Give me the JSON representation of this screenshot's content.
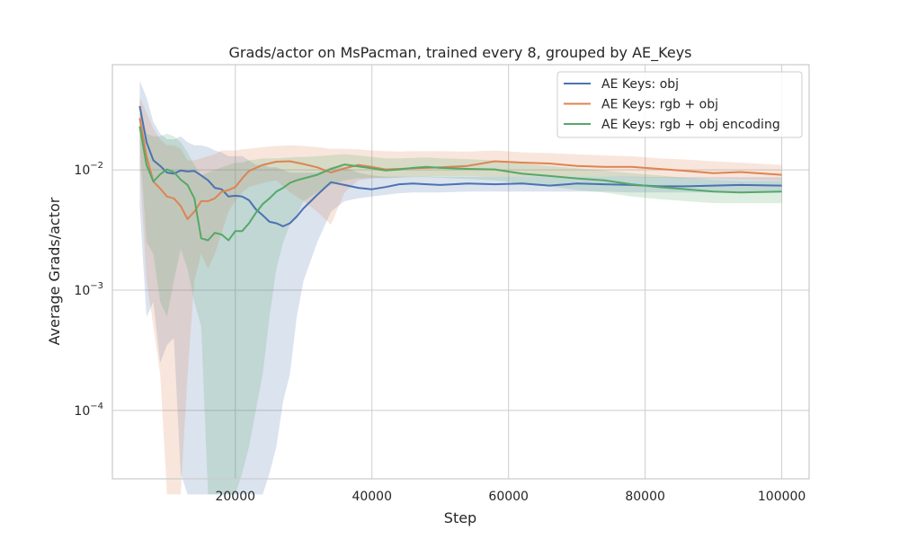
{
  "chart_data": {
    "type": "line",
    "title": "Grads/actor on MsPacman, trained every 8, grouped by AE_Keys",
    "xlabel": "Step",
    "ylabel": "Average Grads/actor",
    "xlim": [
      2000,
      104000
    ],
    "ylim": [
      2.7e-05,
      0.075
    ],
    "yscale": "log",
    "grid": true,
    "legend_position": "top-right",
    "x_ticks": [
      20000,
      40000,
      60000,
      80000,
      100000
    ],
    "x_tick_labels": [
      "20000",
      "40000",
      "60000",
      "80000",
      "100000"
    ],
    "y_ticks": [
      0.0001,
      0.001,
      0.01
    ],
    "y_tick_labels": [
      {
        "base": "10",
        "exp": "−4"
      },
      {
        "base": "10",
        "exp": "−3"
      },
      {
        "base": "10",
        "exp": "−2"
      }
    ],
    "series": [
      {
        "name": "AE Keys: obj",
        "color": "#4c72b0",
        "x": [
          6000,
          7000,
          8000,
          9000,
          10000,
          11000,
          12000,
          13000,
          14000,
          15000,
          16000,
          17000,
          18000,
          19000,
          20000,
          21000,
          22000,
          23000,
          24000,
          25000,
          26000,
          27000,
          28000,
          29000,
          30000,
          32000,
          34000,
          36000,
          38000,
          40000,
          42000,
          44000,
          46000,
          48000,
          50000,
          54000,
          58000,
          62000,
          66000,
          70000,
          74000,
          78000,
          82000,
          86000,
          90000,
          94000,
          100000
        ],
        "y": [
          0.034,
          0.017,
          0.012,
          0.0108,
          0.0095,
          0.0093,
          0.0099,
          0.0097,
          0.0098,
          0.009,
          0.0082,
          0.0071,
          0.0069,
          0.006,
          0.0061,
          0.006,
          0.0056,
          0.0047,
          0.0042,
          0.0037,
          0.0036,
          0.0034,
          0.0036,
          0.0041,
          0.0048,
          0.0062,
          0.0079,
          0.0075,
          0.0071,
          0.0069,
          0.0072,
          0.0076,
          0.0077,
          0.0076,
          0.0075,
          0.0077,
          0.0076,
          0.0077,
          0.0074,
          0.0077,
          0.0076,
          0.0075,
          0.0073,
          0.0073,
          0.0074,
          0.0075,
          0.0074
        ],
        "lower": [
          0.005,
          0.0006,
          0.0008,
          0.00025,
          0.00035,
          0.0004,
          3e-05,
          2e-05,
          2e-05,
          2e-05,
          2e-05,
          2e-05,
          2e-05,
          2e-05,
          2e-05,
          2e-05,
          2e-05,
          2e-05,
          2e-05,
          3e-05,
          5e-05,
          0.00012,
          0.0002,
          0.0006,
          0.0012,
          0.0025,
          0.0045,
          0.0055,
          0.0058,
          0.006,
          0.0062,
          0.0064,
          0.0065,
          0.0065,
          0.0065,
          0.0066,
          0.0066,
          0.0066,
          0.0066,
          0.0066,
          0.0066,
          0.0065,
          0.0065,
          0.0065,
          0.0065,
          0.0065,
          0.0065
        ],
        "upper": [
          0.055,
          0.04,
          0.025,
          0.02,
          0.018,
          0.018,
          0.019,
          0.017,
          0.016,
          0.016,
          0.0155,
          0.0145,
          0.014,
          0.013,
          0.013,
          0.013,
          0.012,
          0.011,
          0.011,
          0.0105,
          0.0105,
          0.01,
          0.0095,
          0.0095,
          0.0095,
          0.0095,
          0.0105,
          0.0105,
          0.0095,
          0.009,
          0.0088,
          0.0088,
          0.0088,
          0.0088,
          0.0088,
          0.0088,
          0.0088,
          0.0088,
          0.0088,
          0.0088,
          0.0088,
          0.0088,
          0.0087,
          0.0087,
          0.0087,
          0.0087,
          0.0087
        ]
      },
      {
        "name": "AE Keys: rgb + obj",
        "color": "#dd8452",
        "x": [
          6000,
          7000,
          8000,
          9000,
          10000,
          11000,
          12000,
          13000,
          14000,
          15000,
          16000,
          17000,
          18000,
          19000,
          20000,
          21000,
          22000,
          23000,
          24000,
          26000,
          28000,
          30000,
          32000,
          34000,
          36000,
          38000,
          40000,
          42000,
          44000,
          46000,
          48000,
          50000,
          54000,
          58000,
          62000,
          66000,
          70000,
          74000,
          78000,
          82000,
          86000,
          90000,
          94000,
          100000
        ],
        "y": [
          0.027,
          0.013,
          0.008,
          0.007,
          0.006,
          0.0058,
          0.005,
          0.0039,
          0.0045,
          0.0055,
          0.0055,
          0.0058,
          0.0066,
          0.0068,
          0.0072,
          0.0085,
          0.0098,
          0.0104,
          0.011,
          0.0117,
          0.0118,
          0.0112,
          0.0105,
          0.0095,
          0.0103,
          0.011,
          0.0106,
          0.0101,
          0.0102,
          0.0103,
          0.0104,
          0.0105,
          0.0108,
          0.0118,
          0.0115,
          0.0113,
          0.0108,
          0.0106,
          0.0106,
          0.0102,
          0.0098,
          0.0094,
          0.0096,
          0.0091
        ],
        "lower": [
          0.011,
          0.0012,
          0.0005,
          0.0002,
          2e-05,
          2e-05,
          2e-05,
          0.0002,
          0.0012,
          0.002,
          0.0015,
          0.002,
          0.003,
          0.0045,
          0.0055,
          0.0065,
          0.0072,
          0.0075,
          0.0078,
          0.0082,
          0.0065,
          0.0055,
          0.0045,
          0.0035,
          0.0065,
          0.0082,
          0.0085,
          0.0086,
          0.0087,
          0.0088,
          0.0088,
          0.0089,
          0.0089,
          0.0088,
          0.0088,
          0.0088,
          0.0088,
          0.0088,
          0.0087,
          0.0086,
          0.0085,
          0.0084,
          0.0083,
          0.0082
        ],
        "upper": [
          0.04,
          0.03,
          0.022,
          0.018,
          0.016,
          0.016,
          0.015,
          0.012,
          0.012,
          0.0125,
          0.013,
          0.0135,
          0.0145,
          0.0145,
          0.0145,
          0.0148,
          0.015,
          0.0152,
          0.0155,
          0.0158,
          0.016,
          0.0158,
          0.0155,
          0.015,
          0.015,
          0.0148,
          0.0145,
          0.0143,
          0.0142,
          0.0143,
          0.0143,
          0.0143,
          0.0142,
          0.0145,
          0.014,
          0.0138,
          0.0135,
          0.0132,
          0.013,
          0.0125,
          0.0122,
          0.0118,
          0.0115,
          0.011
        ]
      },
      {
        "name": "AE Keys: rgb + obj encoding",
        "color": "#55a868",
        "x": [
          6000,
          7000,
          8000,
          9000,
          10000,
          11000,
          12000,
          13000,
          14000,
          15000,
          16000,
          17000,
          18000,
          19000,
          20000,
          21000,
          22000,
          23000,
          24000,
          25000,
          26000,
          27000,
          28000,
          29000,
          30000,
          32000,
          34000,
          36000,
          38000,
          40000,
          42000,
          44000,
          46000,
          48000,
          50000,
          54000,
          58000,
          62000,
          66000,
          70000,
          74000,
          78000,
          82000,
          86000,
          90000,
          94000,
          100000
        ],
        "y": [
          0.023,
          0.011,
          0.008,
          0.0092,
          0.0101,
          0.0096,
          0.0083,
          0.0075,
          0.0058,
          0.0027,
          0.0026,
          0.003,
          0.0029,
          0.0026,
          0.0031,
          0.0031,
          0.0036,
          0.0044,
          0.0052,
          0.0058,
          0.0066,
          0.0071,
          0.0078,
          0.0082,
          0.0085,
          0.0091,
          0.0102,
          0.0111,
          0.0107,
          0.0103,
          0.0099,
          0.0101,
          0.0104,
          0.0106,
          0.0104,
          0.0102,
          0.0101,
          0.0093,
          0.0089,
          0.0085,
          0.0082,
          0.0076,
          0.0072,
          0.0069,
          0.0066,
          0.0065,
          0.0066
        ],
        "lower": [
          0.017,
          0.0025,
          0.002,
          0.0008,
          0.0006,
          0.0012,
          0.0022,
          0.0015,
          0.0008,
          0.0005,
          2e-05,
          2e-05,
          2e-05,
          2e-05,
          2e-05,
          3e-05,
          5e-05,
          0.0001,
          0.0002,
          0.0006,
          0.0015,
          0.0025,
          0.0035,
          0.0042,
          0.0055,
          0.0065,
          0.0075,
          0.0082,
          0.0085,
          0.0086,
          0.0085,
          0.0086,
          0.0087,
          0.0087,
          0.0086,
          0.0084,
          0.0082,
          0.0077,
          0.0073,
          0.0068,
          0.0065,
          0.006,
          0.0057,
          0.0055,
          0.0053,
          0.0053,
          0.0053
        ],
        "upper": [
          0.03,
          0.02,
          0.019,
          0.019,
          0.02,
          0.019,
          0.017,
          0.014,
          0.011,
          0.009,
          0.0095,
          0.01,
          0.0105,
          0.011,
          0.0115,
          0.0115,
          0.012,
          0.0122,
          0.0125,
          0.0125,
          0.0125,
          0.0126,
          0.0127,
          0.0128,
          0.0128,
          0.013,
          0.0133,
          0.0135,
          0.0132,
          0.0128,
          0.0125,
          0.0125,
          0.0126,
          0.0127,
          0.0125,
          0.0123,
          0.012,
          0.0113,
          0.0108,
          0.0103,
          0.0099,
          0.0094,
          0.009,
          0.0086,
          0.0083,
          0.0081,
          0.0081
        ]
      }
    ]
  }
}
